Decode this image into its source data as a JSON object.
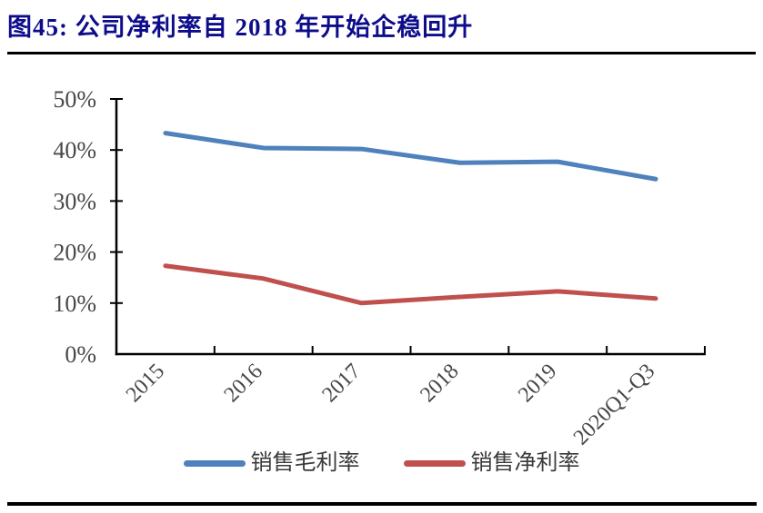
{
  "page": {
    "title": "图45:  公司净利率自 2018 年开始企稳回升"
  },
  "chart_data": {
    "type": "line",
    "title": "图45: 公司净利率自 2018 年开始企稳回升",
    "categories": [
      "2015",
      "2016",
      "2017",
      "2018",
      "2019",
      "2020Q1-Q3"
    ],
    "series": [
      {
        "name": "销售毛利率",
        "color": "#4F81BD",
        "values": [
          43.3,
          40.4,
          40.2,
          37.5,
          37.7,
          34.3
        ]
      },
      {
        "name": "销售净利率",
        "color": "#C0504D",
        "values": [
          17.3,
          14.8,
          10.0,
          11.2,
          12.3,
          10.9
        ]
      }
    ],
    "xlabel": "",
    "ylabel": "",
    "y_axis": {
      "min": 0,
      "max": 50,
      "step": 10,
      "tick_labels": [
        "0%",
        "10%",
        "20%",
        "30%",
        "40%",
        "50%"
      ],
      "format": "percent"
    },
    "grid": false,
    "legend_position": "bottom",
    "axis_color": "#000000",
    "label_color": "#474747",
    "line_width": 5
  }
}
